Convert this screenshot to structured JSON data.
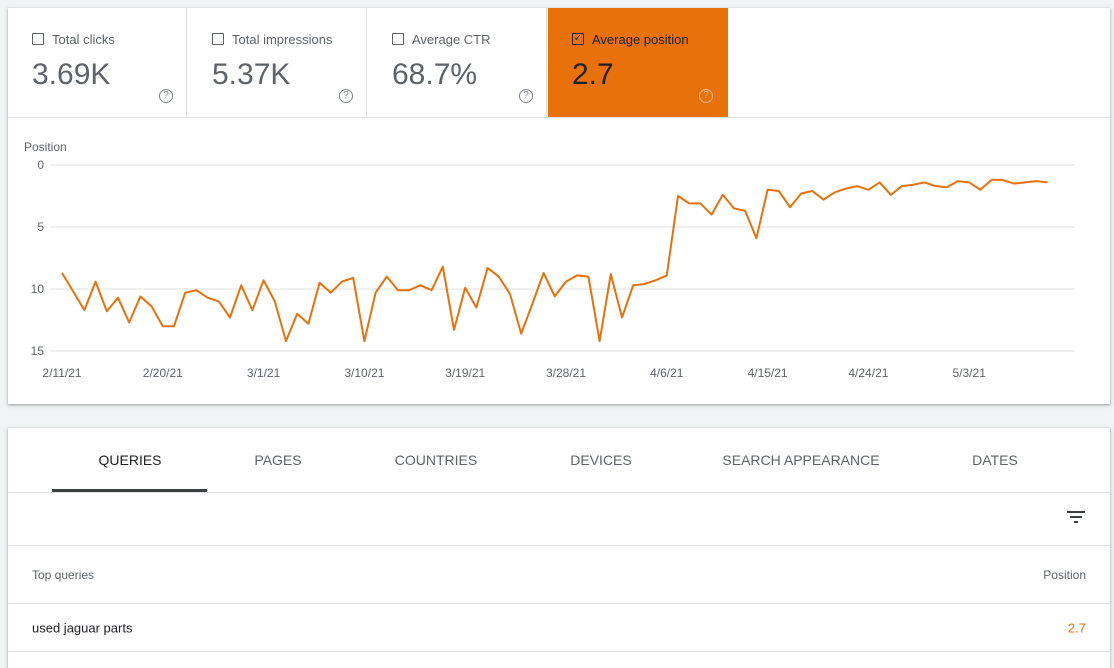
{
  "metrics": [
    {
      "label": "Total clicks",
      "value": "3.69K",
      "checked": false
    },
    {
      "label": "Total impressions",
      "value": "5.37K",
      "checked": false
    },
    {
      "label": "Average CTR",
      "value": "68.7%",
      "checked": false
    },
    {
      "label": "Average position",
      "value": "2.7",
      "checked": true
    }
  ],
  "help_glyph": "?",
  "check_glyph": "✓",
  "colors": {
    "accent": "#e8710a",
    "line": "#e8710a",
    "grid": "#e0e0e0"
  },
  "chart_data": {
    "type": "line",
    "ylabel": "Position",
    "y_inverted": true,
    "ylim": [
      0,
      15
    ],
    "yticks": [
      "0",
      "5",
      "10",
      "15"
    ],
    "xticks": [
      "2/11/21",
      "2/20/21",
      "3/1/21",
      "3/10/21",
      "3/19/21",
      "3/28/21",
      "4/6/21",
      "4/15/21",
      "4/24/21",
      "5/3/21"
    ],
    "grid": true,
    "x": [
      "2/11/21",
      "2/12/21",
      "2/13/21",
      "2/14/21",
      "2/15/21",
      "2/16/21",
      "2/17/21",
      "2/18/21",
      "2/19/21",
      "2/20/21",
      "2/21/21",
      "2/22/21",
      "2/23/21",
      "2/24/21",
      "2/25/21",
      "2/26/21",
      "2/27/21",
      "2/28/21",
      "3/1/21",
      "3/2/21",
      "3/3/21",
      "3/4/21",
      "3/5/21",
      "3/6/21",
      "3/7/21",
      "3/8/21",
      "3/9/21",
      "3/10/21",
      "3/11/21",
      "3/12/21",
      "3/13/21",
      "3/14/21",
      "3/15/21",
      "3/16/21",
      "3/17/21",
      "3/18/21",
      "3/19/21",
      "3/20/21",
      "3/21/21",
      "3/22/21",
      "3/23/21",
      "3/24/21",
      "3/25/21",
      "3/26/21",
      "3/27/21",
      "3/28/21",
      "3/29/21",
      "3/30/21",
      "3/31/21",
      "4/1/21",
      "4/2/21",
      "4/3/21",
      "4/4/21",
      "4/5/21",
      "4/6/21",
      "4/7/21",
      "4/8/21",
      "4/9/21",
      "4/10/21",
      "4/11/21",
      "4/12/21",
      "4/13/21",
      "4/14/21",
      "4/15/21",
      "4/16/21",
      "4/17/21",
      "4/18/21",
      "4/19/21",
      "4/20/21",
      "4/21/21",
      "4/22/21",
      "4/23/21",
      "4/24/21",
      "4/25/21",
      "4/26/21",
      "4/27/21",
      "4/28/21",
      "4/29/21",
      "4/30/21",
      "5/1/21",
      "5/2/21",
      "5/3/21",
      "5/4/21",
      "5/5/21",
      "5/6/21",
      "5/7/21",
      "5/8/21",
      "5/9/21",
      "5/10/21"
    ],
    "series": [
      {
        "values": [
          8.7,
          10.2,
          11.7,
          9.4,
          11.8,
          10.7,
          12.7,
          10.6,
          11.4,
          13.0,
          13.0,
          10.3,
          10.1,
          10.7,
          11.0,
          12.3,
          9.7,
          11.7,
          9.3,
          11.0,
          14.2,
          12.0,
          12.8,
          9.5,
          10.3,
          9.4,
          9.1,
          14.2,
          10.3,
          9.0,
          10.1,
          10.1,
          9.7,
          10.1,
          8.2,
          13.3,
          9.9,
          11.5,
          8.3,
          9.0,
          10.4,
          13.6,
          11.2,
          8.7,
          10.6,
          9.4,
          8.9,
          9.0,
          14.2,
          8.8,
          12.3,
          9.7,
          9.6,
          9.3,
          8.9,
          2.5,
          3.1,
          3.1,
          4.0,
          2.4,
          3.5,
          3.7,
          5.9,
          2.0,
          2.1,
          3.4,
          2.3,
          2.1,
          2.8,
          2.2,
          1.9,
          1.7,
          2.0,
          1.4,
          2.4,
          1.7,
          1.6,
          1.4,
          1.7,
          1.8,
          1.3,
          1.4,
          2.0,
          1.2,
          1.2,
          1.5,
          1.4,
          1.3,
          1.4
        ]
      }
    ]
  },
  "tabs": [
    {
      "label": "Queries",
      "active": true
    },
    {
      "label": "Pages",
      "active": false
    },
    {
      "label": "Countries",
      "active": false
    },
    {
      "label": "Devices",
      "active": false
    },
    {
      "label": "Search appearance",
      "active": false
    },
    {
      "label": "Dates",
      "active": false
    }
  ],
  "table": {
    "columns": [
      "Top queries",
      "Position"
    ],
    "rows": [
      {
        "query": "used jaguar parts",
        "position": "2.7"
      }
    ]
  }
}
